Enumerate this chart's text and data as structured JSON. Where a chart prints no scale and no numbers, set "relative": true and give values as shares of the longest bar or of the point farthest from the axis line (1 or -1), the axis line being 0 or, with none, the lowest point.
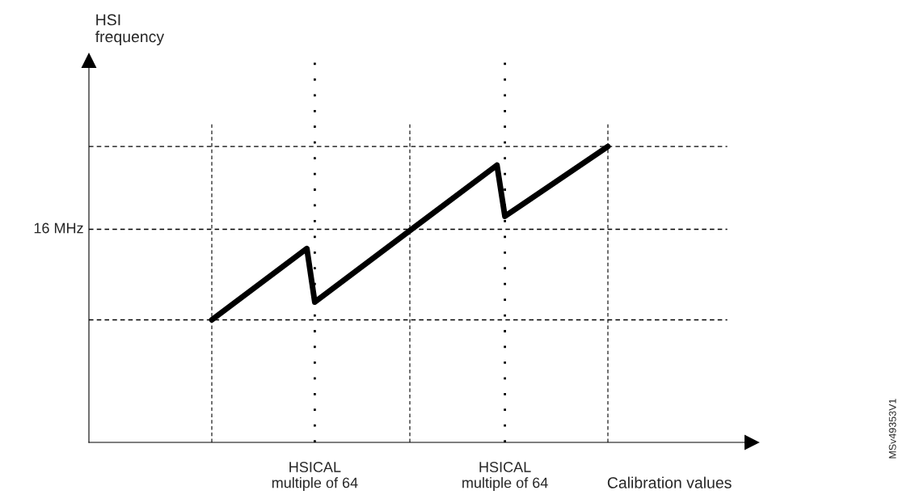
{
  "chart_data": {
    "type": "line",
    "relative": true,
    "xlabel": "Calibration values",
    "categories": [
      null,
      null,
      null,
      null,
      null,
      null,
      null,
      null,
      null,
      null,
      null,
      null,
      null,
      null,
      null,
      null,
      null,
      null,
      null,
      null,
      null,
      null,
      null,
      null,
      null,
      null,
      null,
      null,
      null,
      null,
      null,
      null,
      null,
      null,
      null,
      null,
      null,
      null,
      null,
      null,
      null,
      null,
      null,
      null,
      null,
      null,
      null,
      null,
      null,
      null,
      null
    ],
    "series": [
      {
        "color": "#000000",
        "values": [
          0.414,
          null,
          null,
          null,
          null,
          null,
          null,
          null,
          null,
          null,
          null,
          null,
          0.655,
          0.474,
          null,
          null,
          null,
          null,
          null,
          null,
          null,
          null,
          null,
          null,
          null,
          null,
          null,
          null,
          null,
          null,
          null,
          null,
          null,
          null,
          null,
          null,
          0.937,
          0.764,
          null,
          null,
          null,
          null,
          null,
          null,
          null,
          null,
          null,
          null,
          null,
          null,
          1.0
        ]
      }
    ],
    "line_style": "solid",
    "marker": "none",
    "legend": false,
    "grid": "x",
    "ref_lines": [
      {
        "axis": "y",
        "value": 0.414,
        "label": null,
        "line_style": "dashed",
        "color": "#000000"
      },
      {
        "axis": "y",
        "value": 0.72,
        "label": "16 MHz",
        "line_style": "dashed",
        "color": "#000000"
      },
      {
        "axis": "y",
        "value": 1.0,
        "label": null,
        "line_style": "dashed",
        "color": "#000000"
      }
    ],
    "annotations": [
      "HSI\nfrequency",
      "HSICAL\nmultiple of 64",
      "HSICAL\nmultiple of 64",
      "MSv49353V1"
    ]
  }
}
